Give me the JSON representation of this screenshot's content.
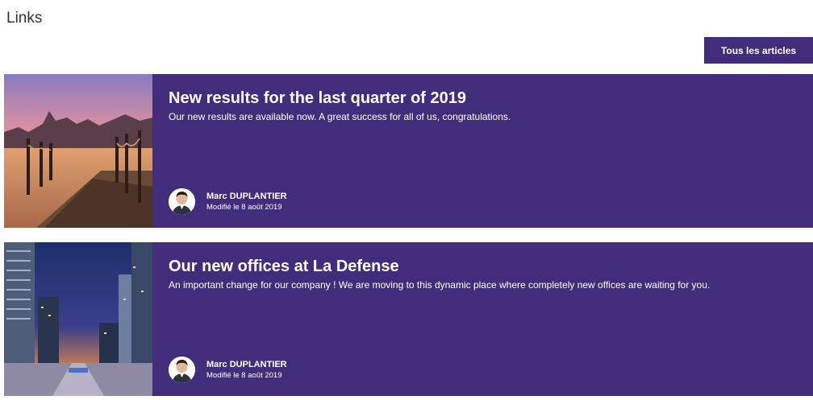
{
  "section": {
    "title": "Links"
  },
  "toolbar": {
    "all_articles_label": "Tous les articles"
  },
  "colors": {
    "accent": "#422d7c",
    "title_text": "#333333"
  },
  "cards": [
    {
      "image": "sunset-pier-image",
      "title": "New results for the last quarter of 2019",
      "description": "Our new results are available now. A great success for all of us, congratulations.",
      "author": "Marc DUPLANTIER",
      "modified": "Modifié le 8 août 2019"
    },
    {
      "image": "city-night-image",
      "title": "Our new offices at La Defense",
      "description": "An important change for our company ! We are moving to this dynamic place where completely new offices are waiting for you.",
      "author": "Marc DUPLANTIER",
      "modified": "Modifié le 8 août 2019"
    }
  ]
}
